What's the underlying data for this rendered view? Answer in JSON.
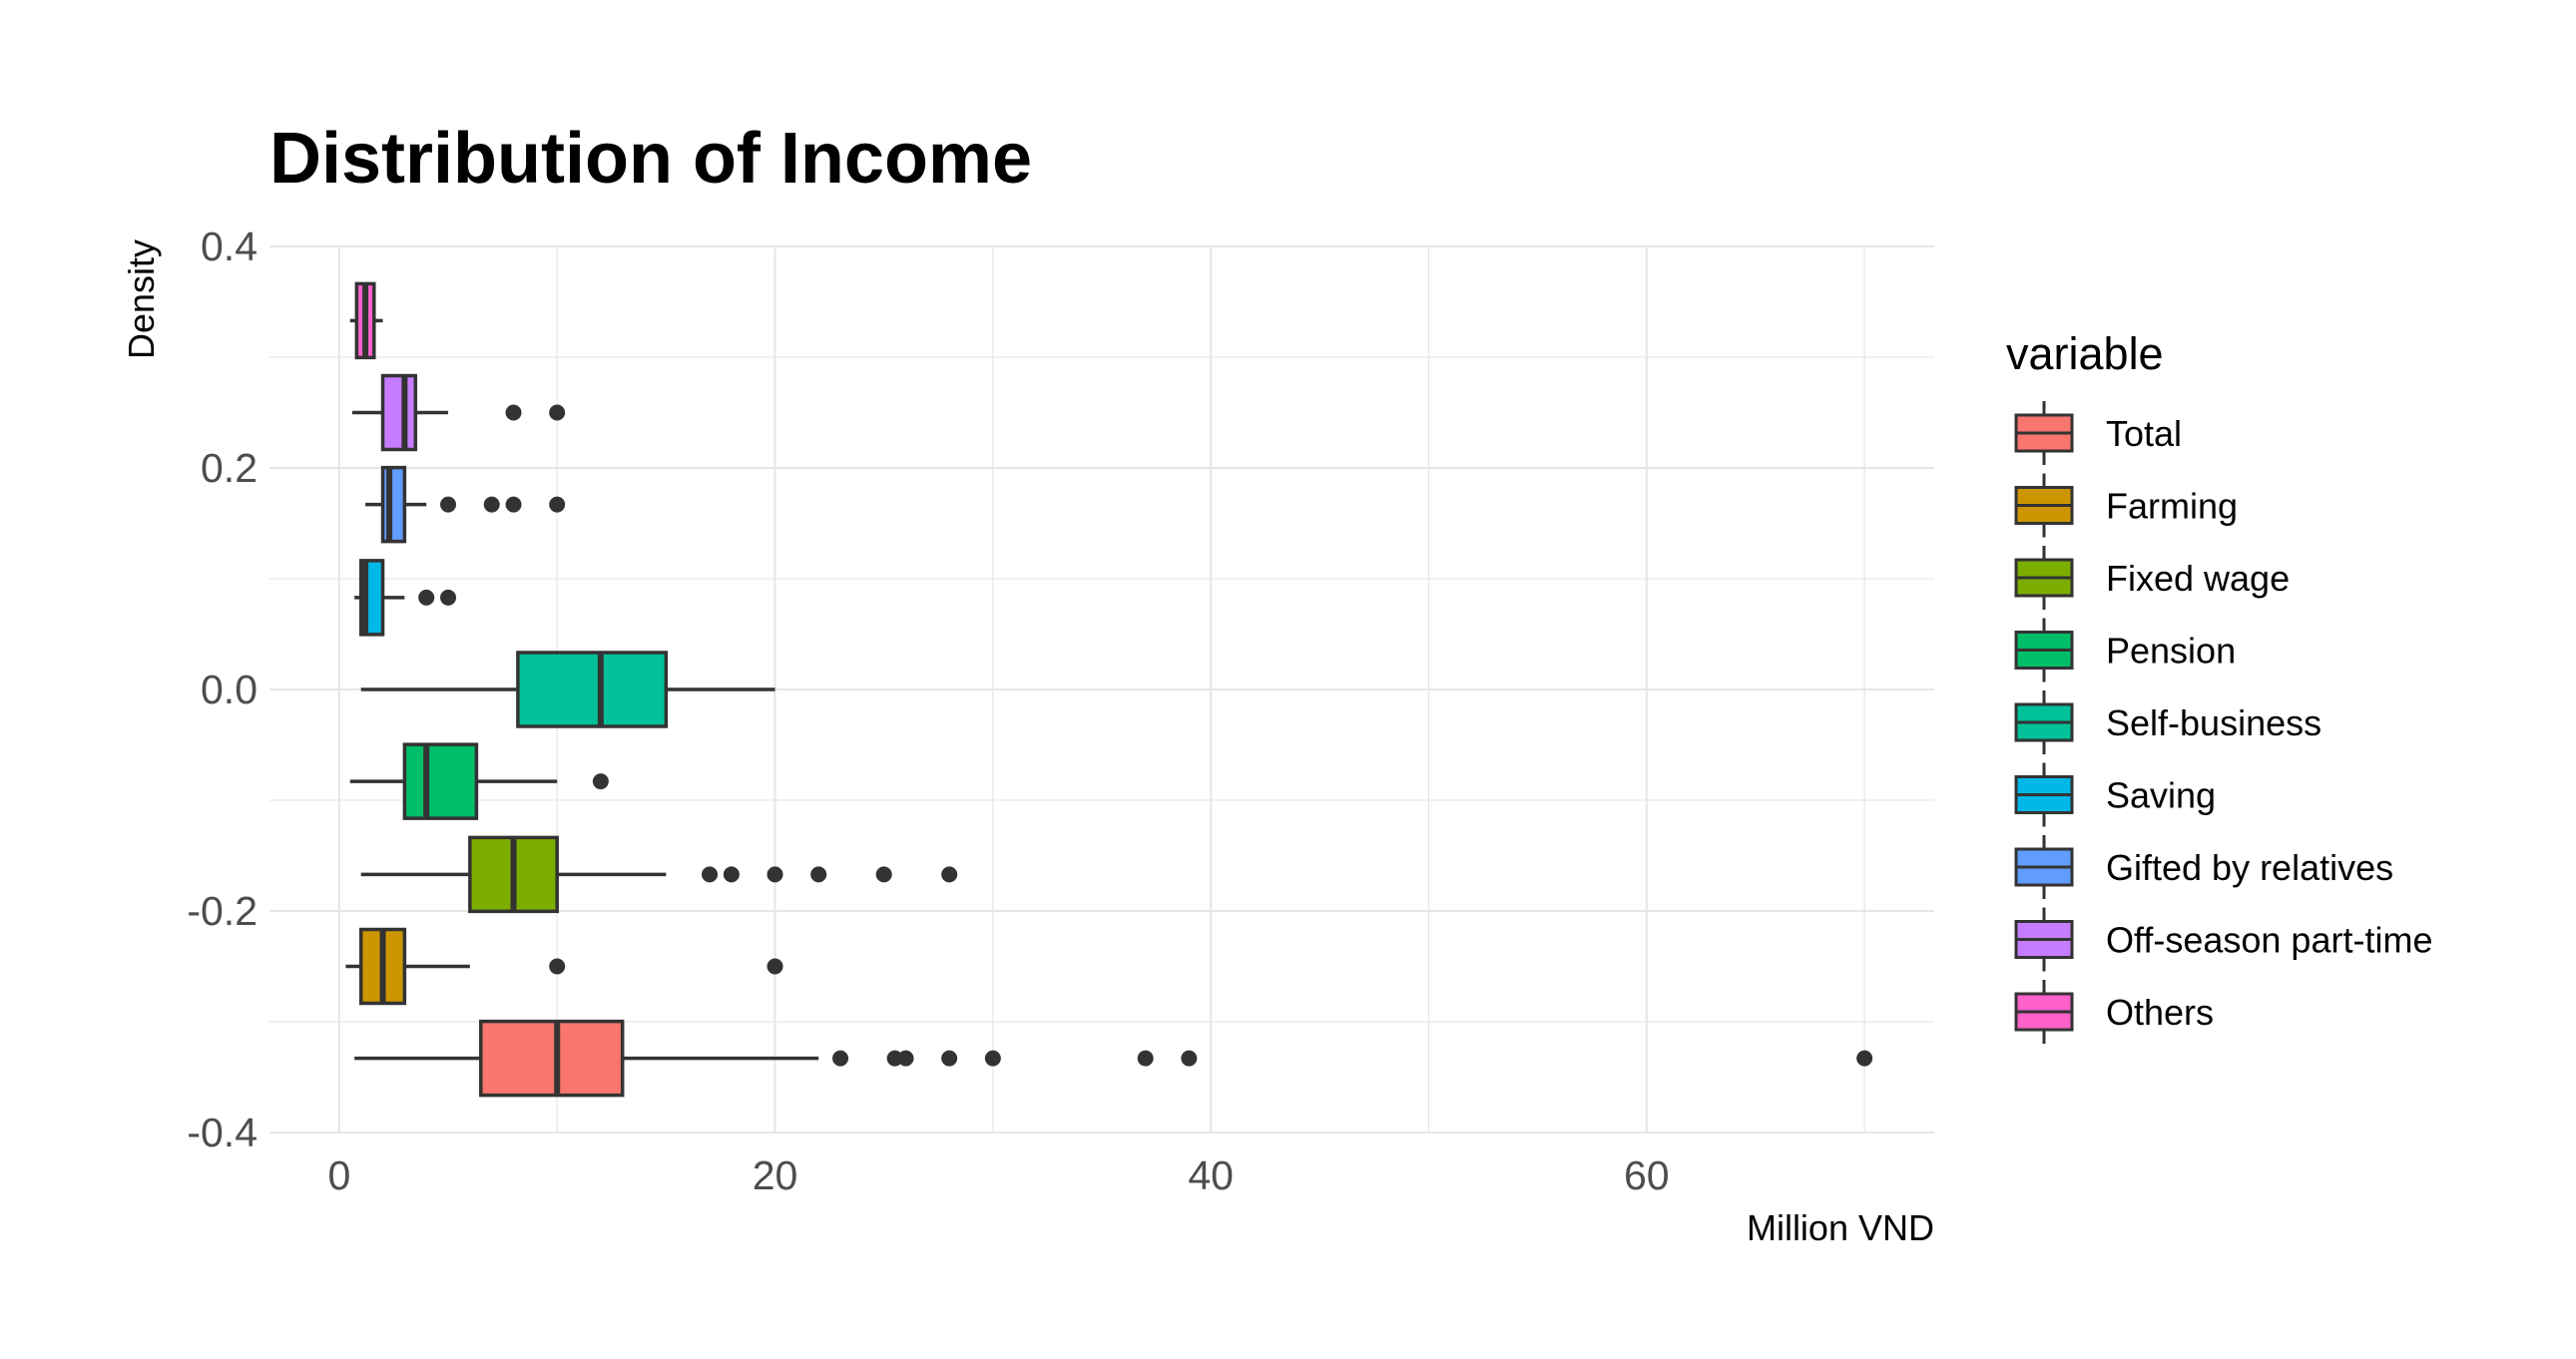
{
  "chart_data": {
    "type": "boxplot",
    "title": "Distribution of Income",
    "xlabel": "Million VND",
    "ylabel": "Density",
    "xlim": [
      -3.2,
      73.2
    ],
    "ylim": [
      -0.4,
      0.4
    ],
    "x_ticks": [
      0,
      20,
      40,
      60
    ],
    "y_ticks": [
      0.4,
      0.2,
      0.0,
      -0.2,
      -0.4
    ],
    "y_tick_labels": [
      "0.4",
      "0.2",
      "0.0",
      "-0.2",
      "-0.4"
    ],
    "x_tick_labels": [
      "0",
      "20",
      "40",
      "60"
    ],
    "grid": true,
    "legend_title": "variable",
    "legend_position": "right",
    "series": [
      {
        "name": "Total",
        "color": "#F8766D",
        "y": -0.333,
        "whisker_low": 0.7,
        "q1": 6.5,
        "median": 10,
        "q3": 13,
        "whisker_high": 22,
        "outliers": [
          23,
          25.5,
          26,
          28,
          30,
          37,
          39,
          70
        ]
      },
      {
        "name": "Farming",
        "color": "#CD9600",
        "y": -0.25,
        "whisker_low": 0.3,
        "q1": 1,
        "median": 2,
        "q3": 3,
        "whisker_high": 6,
        "outliers": [
          10,
          20
        ]
      },
      {
        "name": "Fixed wage",
        "color": "#7CAE00",
        "y": -0.167,
        "whisker_low": 1,
        "q1": 6,
        "median": 8,
        "q3": 10,
        "whisker_high": 15,
        "outliers": [
          17,
          18,
          20,
          22,
          25,
          28
        ]
      },
      {
        "name": "Pension",
        "color": "#00BE67",
        "y": -0.083,
        "whisker_low": 0.5,
        "q1": 3,
        "median": 4,
        "q3": 6.3,
        "whisker_high": 10,
        "outliers": [
          12
        ]
      },
      {
        "name": "Self-business",
        "color": "#00BFC4_placeholder",
        "y": 0.0,
        "whisker_low": 1,
        "q1": 8.2,
        "median": 12,
        "q3": 15,
        "whisker_high": 20,
        "outliers": []
      },
      {
        "name": "Saving",
        "color": "#00B8E7",
        "y": 0.083,
        "whisker_low": 0.7,
        "q1": 1,
        "median": 1.2,
        "q3": 2,
        "whisker_high": 3,
        "outliers": [
          4,
          5
        ]
      },
      {
        "name": "Gifted by relatives",
        "color": "#619CFF",
        "y": 0.167,
        "whisker_low": 1.2,
        "q1": 2,
        "median": 2.3,
        "q3": 3,
        "whisker_high": 4,
        "outliers": [
          5,
          7,
          8,
          10
        ]
      },
      {
        "name": "Off-season part-time",
        "color": "#C77CFF",
        "y": 0.25,
        "whisker_low": 0.6,
        "q1": 2,
        "median": 3,
        "q3": 3.5,
        "whisker_high": 5,
        "outliers": [
          8,
          10
        ]
      },
      {
        "name": "Others",
        "color": "#FF61CC",
        "y": 0.333,
        "whisker_low": 0.5,
        "q1": 0.8,
        "median": 1.2,
        "q3": 1.6,
        "whisker_high": 2,
        "outliers": []
      }
    ]
  }
}
